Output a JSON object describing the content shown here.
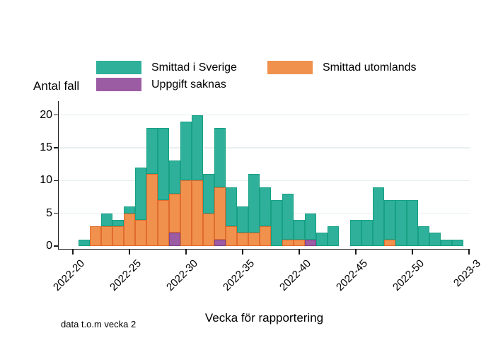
{
  "y_axis": {
    "title": "Antal fall",
    "ticks": [
      0,
      5,
      10,
      15,
      20
    ]
  },
  "x_axis": {
    "title": "Vecka för rapportering",
    "ticks": [
      {
        "label": "2022-20",
        "week_offset": 0
      },
      {
        "label": "2022-25",
        "week_offset": 5
      },
      {
        "label": "2022-30",
        "week_offset": 10
      },
      {
        "label": "2022-35",
        "week_offset": 15
      },
      {
        "label": "2022-40",
        "week_offset": 20
      },
      {
        "label": "2022-45",
        "week_offset": 25
      },
      {
        "label": "2022-50",
        "week_offset": 30
      },
      {
        "label": "2023-3",
        "week_offset": 35
      }
    ]
  },
  "legend": {
    "items": [
      {
        "label": "Smittad i Sverige",
        "color": "#2eb09a"
      },
      {
        "label": "Smittad utomlands",
        "color": "#f0914d"
      },
      {
        "label": "Uppgift saknas",
        "color": "#9c5ca3"
      }
    ]
  },
  "note": "data t.o.m vecka 2",
  "chart_data": {
    "type": "bar",
    "stacked": true,
    "title": "",
    "xlabel": "Vecka för rapportering",
    "ylabel": "Antal fall",
    "ylim": [
      0,
      20
    ],
    "grid": "horizontal",
    "legend_position": "top",
    "categories": [
      "2022-21",
      "2022-22",
      "2022-23",
      "2022-24",
      "2022-25",
      "2022-26",
      "2022-27",
      "2022-28",
      "2022-29",
      "2022-30",
      "2022-31",
      "2022-32",
      "2022-33",
      "2022-34",
      "2022-35",
      "2022-36",
      "2022-37",
      "2022-38",
      "2022-39",
      "2022-40",
      "2022-41",
      "2022-42",
      "2022-43",
      "2022-44",
      "2022-45",
      "2022-46",
      "2022-47",
      "2022-48",
      "2022-49",
      "2022-50",
      "2022-51",
      "2022-52",
      "2023-1",
      "2023-2"
    ],
    "series": [
      {
        "name": "Uppgift saknas",
        "color": "#9c5ca3",
        "border": "#7e4487",
        "values": [
          0,
          0,
          0,
          0,
          0,
          0,
          0,
          0,
          2,
          0,
          0,
          0,
          1,
          0,
          0,
          0,
          0,
          0,
          0,
          0,
          1,
          0,
          0,
          0,
          0,
          0,
          0,
          0,
          0,
          0,
          0,
          0,
          0,
          0
        ]
      },
      {
        "name": "Smittad utomlands",
        "color": "#f0914d",
        "border": "#e06b2d",
        "values": [
          0,
          3,
          3,
          3,
          5,
          4,
          11,
          7,
          6,
          10,
          10,
          5,
          8,
          3,
          2,
          2,
          3,
          0,
          1,
          1,
          0,
          0,
          0,
          0,
          0,
          0,
          0,
          1,
          0,
          0,
          0,
          0,
          0,
          0
        ]
      },
      {
        "name": "Smittad i Sverige",
        "color": "#2eb09a",
        "border": "#17a084",
        "values": [
          1,
          0,
          2,
          1,
          1,
          8,
          7,
          11,
          5,
          9,
          10,
          6,
          9,
          6,
          4,
          9,
          6,
          7,
          7,
          3,
          4,
          2,
          3,
          0,
          4,
          4,
          9,
          6,
          7,
          7,
          3,
          2,
          1,
          1
        ]
      }
    ]
  }
}
